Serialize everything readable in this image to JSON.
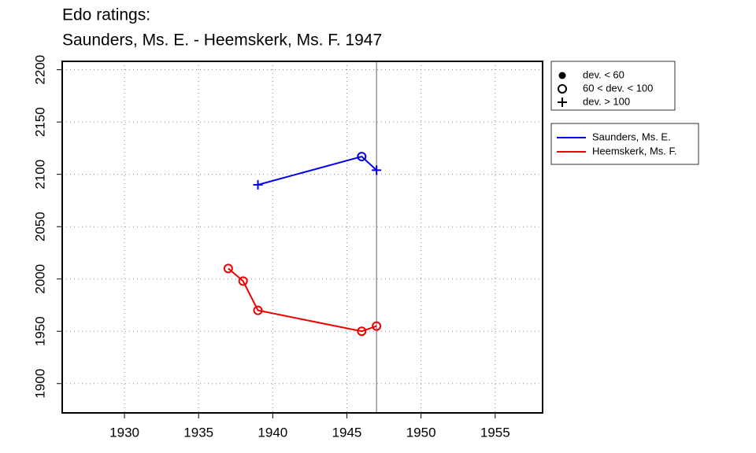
{
  "chart_data": {
    "type": "line",
    "title": [
      "Edo ratings:",
      "Saunders, Ms. E. - Heemskerk, Ms. F. 1947"
    ],
    "xlim": [
      1925.8,
      1958.2
    ],
    "xticks": [
      1930,
      1935,
      1940,
      1945,
      1950,
      1955
    ],
    "ylim": [
      1872,
      2208
    ],
    "yticks": [
      1900,
      1950,
      2000,
      2050,
      2100,
      2150,
      2200
    ],
    "grid": true,
    "vline": 1947,
    "series": [
      {
        "name": "Saunders, Ms. E.",
        "color": "#0000ee",
        "x": [
          1939,
          1946,
          1947
        ],
        "values": [
          2090,
          2117,
          2104
        ],
        "markers": [
          "plus",
          "circle",
          "plus"
        ]
      },
      {
        "name": "Heemskerk, Ms. F.",
        "color": "#ee0000",
        "x": [
          1937,
          1938,
          1939,
          1946,
          1947
        ],
        "values": [
          2010,
          1998,
          1970,
          1950,
          1955
        ],
        "markers": [
          "circle",
          "circle",
          "circle",
          "circle",
          "circle"
        ]
      }
    ],
    "marker_legend": [
      {
        "label": "dev. < 60",
        "marker": "dot"
      },
      {
        "label": "60 < dev. < 100",
        "marker": "circle"
      },
      {
        "label": "dev. > 100",
        "marker": "plus"
      }
    ]
  }
}
